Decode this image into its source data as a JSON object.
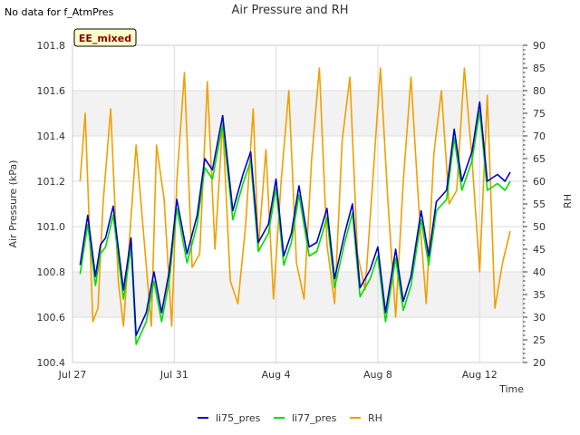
{
  "nodata_text": "No data for f_AtmPres",
  "badge_text": "EE_mixed",
  "chart_data": {
    "type": "line",
    "title": "Air Pressure and RH",
    "xlabel": "Time",
    "ylabel": "Air Pressure (kPa)",
    "y2label": "RH",
    "xlim": [
      0,
      17.7
    ],
    "ylim": [
      100.4,
      101.8
    ],
    "y2lim": [
      20,
      90
    ],
    "x_ticks": [
      {
        "x": 0,
        "label": "Jul 27"
      },
      {
        "x": 4,
        "label": "Jul 31"
      },
      {
        "x": 8,
        "label": "Aug 4"
      },
      {
        "x": 12,
        "label": "Aug 8"
      },
      {
        "x": 16,
        "label": "Aug 12"
      }
    ],
    "y_ticks": [
      "100.4",
      "100.6",
      "100.8",
      "101.0",
      "101.2",
      "101.4",
      "101.6",
      "101.8"
    ],
    "y2_ticks": [
      "20",
      "25",
      "30",
      "35",
      "40",
      "45",
      "50",
      "55",
      "60",
      "65",
      "70",
      "75",
      "80",
      "85",
      "90"
    ],
    "x_unit_note": "x values are days after Jul 27",
    "grid": true,
    "legend_position": "bottom",
    "series": [
      {
        "name": "li75_pres",
        "color": "#0000cc",
        "axis": "left",
        "x": [
          0.3,
          0.6,
          0.9,
          1.1,
          1.3,
          1.6,
          2.0,
          2.3,
          2.5,
          2.9,
          3.2,
          3.5,
          3.8,
          4.1,
          4.5,
          4.9,
          5.2,
          5.5,
          5.9,
          6.3,
          6.7,
          7.0,
          7.3,
          7.7,
          8.0,
          8.3,
          8.6,
          8.9,
          9.3,
          9.6,
          10.0,
          10.3,
          10.7,
          11.0,
          11.3,
          11.7,
          12.0,
          12.3,
          12.7,
          13.0,
          13.3,
          13.7,
          14.0,
          14.3,
          14.7,
          15.0,
          15.3,
          15.7,
          16.0,
          16.3,
          16.7,
          17.0,
          17.2
        ],
        "y": [
          100.83,
          101.05,
          100.78,
          100.92,
          100.95,
          101.09,
          100.72,
          100.95,
          100.52,
          100.62,
          100.8,
          100.62,
          100.8,
          101.12,
          100.88,
          101.05,
          101.3,
          101.25,
          101.49,
          101.07,
          101.23,
          101.33,
          100.93,
          101.01,
          101.21,
          100.87,
          100.97,
          101.18,
          100.91,
          100.93,
          101.08,
          100.77,
          100.97,
          101.1,
          100.73,
          100.81,
          100.91,
          100.62,
          100.9,
          100.67,
          100.78,
          101.07,
          100.87,
          101.11,
          101.16,
          101.43,
          101.2,
          101.33,
          101.55,
          101.2,
          101.23,
          101.2,
          101.24
        ]
      },
      {
        "name": "li77_pres",
        "color": "#00dd00",
        "axis": "left",
        "x": [
          0.3,
          0.6,
          0.9,
          1.1,
          1.3,
          1.6,
          2.0,
          2.3,
          2.5,
          2.9,
          3.2,
          3.5,
          3.8,
          4.1,
          4.5,
          4.9,
          5.2,
          5.5,
          5.9,
          6.3,
          6.7,
          7.0,
          7.3,
          7.7,
          8.0,
          8.3,
          8.6,
          8.9,
          9.3,
          9.6,
          10.0,
          10.3,
          10.7,
          11.0,
          11.3,
          11.7,
          12.0,
          12.3,
          12.7,
          13.0,
          13.3,
          13.7,
          14.0,
          14.3,
          14.7,
          15.0,
          15.3,
          15.7,
          16.0,
          16.3,
          16.7,
          17.0,
          17.2
        ],
        "y": [
          100.79,
          101.01,
          100.74,
          100.88,
          100.91,
          101.05,
          100.68,
          100.91,
          100.48,
          100.58,
          100.76,
          100.58,
          100.76,
          101.08,
          100.84,
          101.01,
          101.26,
          101.21,
          101.45,
          101.03,
          101.19,
          101.29,
          100.89,
          100.97,
          101.17,
          100.83,
          100.93,
          101.14,
          100.87,
          100.89,
          101.04,
          100.73,
          100.93,
          101.06,
          100.69,
          100.77,
          100.87,
          100.58,
          100.86,
          100.63,
          100.74,
          101.03,
          100.83,
          101.07,
          101.12,
          101.39,
          101.16,
          101.29,
          101.51,
          101.16,
          101.19,
          101.16,
          101.2
        ]
      },
      {
        "name": "RH",
        "color": "#f0a000",
        "axis": "right",
        "x": [
          0.3,
          0.5,
          0.8,
          1.0,
          1.2,
          1.5,
          1.8,
          2.0,
          2.2,
          2.5,
          2.8,
          3.1,
          3.3,
          3.6,
          3.9,
          4.1,
          4.4,
          4.7,
          5.0,
          5.3,
          5.6,
          5.9,
          6.2,
          6.5,
          6.8,
          7.1,
          7.3,
          7.6,
          7.9,
          8.2,
          8.5,
          8.8,
          9.1,
          9.4,
          9.7,
          10.0,
          10.3,
          10.6,
          10.9,
          11.2,
          11.5,
          11.8,
          12.1,
          12.4,
          12.7,
          13.0,
          13.3,
          13.6,
          13.9,
          14.2,
          14.5,
          14.8,
          15.1,
          15.4,
          15.7,
          16.0,
          16.3,
          16.6,
          16.9,
          17.2
        ],
        "y": [
          60,
          75,
          29,
          32,
          55,
          76,
          38,
          28,
          44,
          68,
          48,
          28,
          68,
          56,
          28,
          60,
          84,
          41,
          44,
          82,
          45,
          73,
          38,
          33,
          50,
          76,
          45,
          67,
          34,
          60,
          80,
          42,
          34,
          65,
          85,
          46,
          33,
          69,
          83,
          44,
          36,
          60,
          85,
          55,
          30,
          60,
          83,
          55,
          33,
          66,
          80,
          55,
          58,
          85,
          65,
          40,
          79,
          32,
          42,
          49
        ]
      }
    ]
  }
}
